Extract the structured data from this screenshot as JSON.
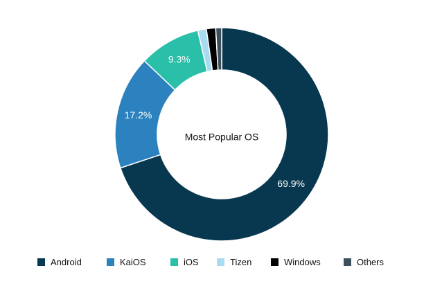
{
  "chart_data": {
    "type": "pie",
    "center_label": "Most Popular OS",
    "categories": [
      "Android",
      "KaiOS",
      "iOS",
      "Tizen",
      "Windows",
      "Others"
    ],
    "values": [
      69.9,
      17.2,
      9.3,
      1.3,
      1.4,
      0.9
    ],
    "colors": [
      "#07384f",
      "#2b82bf",
      "#29bfa9",
      "#a9dcf0",
      "#000000",
      "#3d4f5b"
    ],
    "data_labels": [
      "69.9%",
      "17.2%",
      "9.3%",
      "",
      "",
      ""
    ],
    "legend_position": "bottom"
  }
}
